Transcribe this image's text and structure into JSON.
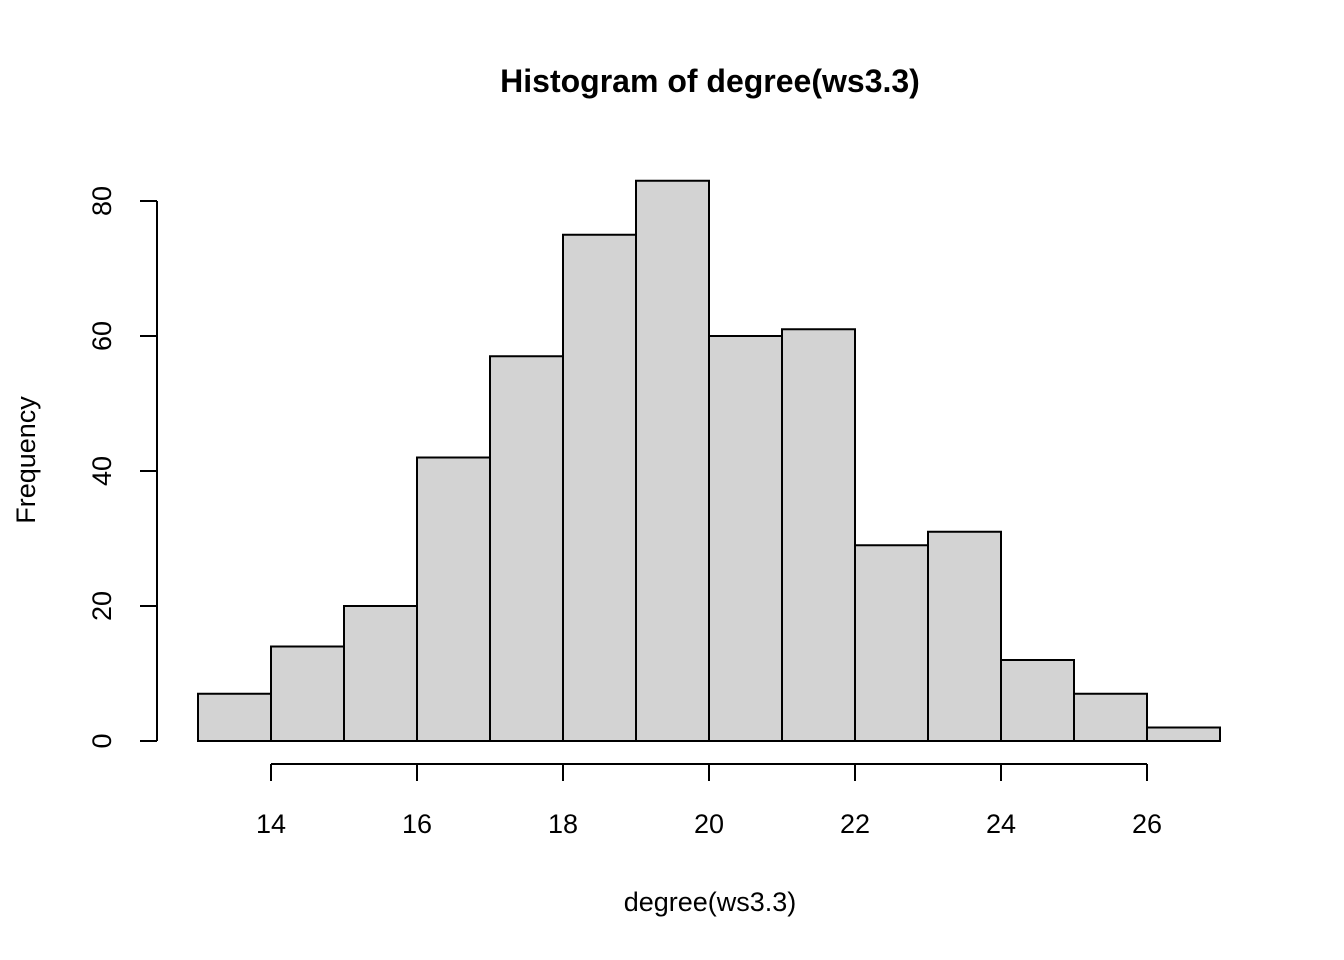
{
  "chart_data": {
    "type": "bar",
    "title": "Histogram of degree(ws3.3)",
    "xlabel": "degree(ws3.3)",
    "ylabel": "Frequency",
    "bins": [
      {
        "from": 13,
        "to": 14,
        "count": 7
      },
      {
        "from": 14,
        "to": 15,
        "count": 14
      },
      {
        "from": 15,
        "to": 16,
        "count": 20
      },
      {
        "from": 16,
        "to": 17,
        "count": 42
      },
      {
        "from": 17,
        "to": 18,
        "count": 57
      },
      {
        "from": 18,
        "to": 19,
        "count": 75
      },
      {
        "from": 19,
        "to": 20,
        "count": 83
      },
      {
        "from": 20,
        "to": 21,
        "count": 60
      },
      {
        "from": 21,
        "to": 22,
        "count": 61
      },
      {
        "from": 22,
        "to": 23,
        "count": 29
      },
      {
        "from": 23,
        "to": 24,
        "count": 31
      },
      {
        "from": 24,
        "to": 25,
        "count": 12
      },
      {
        "from": 25,
        "to": 26,
        "count": 7
      },
      {
        "from": 26,
        "to": 27,
        "count": 2
      }
    ],
    "x_ticks": [
      14,
      16,
      18,
      20,
      22,
      24,
      26
    ],
    "y_ticks": [
      0,
      20,
      40,
      60,
      80
    ],
    "xlim": [
      14,
      26
    ],
    "ylim": [
      0,
      80
    ],
    "bar_color": "#d3d3d3",
    "grid": false,
    "legend": "none"
  }
}
